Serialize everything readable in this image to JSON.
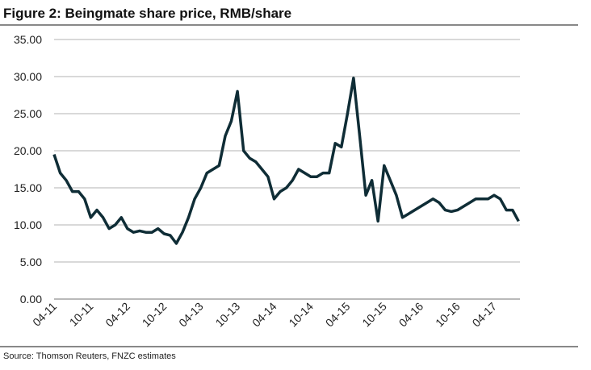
{
  "chart_data": {
    "type": "line",
    "title": "Figure 2: Beingmate share price, RMB/share",
    "source": "Source: Thomson Reuters, FNZC estimates",
    "categories": [
      "04-11",
      null,
      null,
      null,
      null,
      null,
      "10-11",
      null,
      null,
      null,
      null,
      null,
      "04-12",
      null,
      null,
      null,
      null,
      null,
      "10-12",
      null,
      null,
      null,
      null,
      null,
      "04-13",
      null,
      null,
      null,
      null,
      null,
      "10-13",
      null,
      null,
      null,
      null,
      null,
      "04-14",
      null,
      null,
      null,
      null,
      null,
      "10-14",
      null,
      null,
      null,
      null,
      null,
      "04-15",
      null,
      null,
      null,
      null,
      null,
      "10-15",
      null,
      null,
      null,
      null,
      null,
      "04-16",
      null,
      null,
      null,
      null,
      null,
      "10-16",
      null,
      null,
      null,
      null,
      null,
      "04-17",
      null,
      null,
      null,
      null
    ],
    "series": [
      {
        "name": "Beingmate",
        "color": "#0f2d36",
        "values": [
          19.5,
          17,
          16,
          14.5,
          14.5,
          13.5,
          11,
          12,
          11,
          9.5,
          10,
          11,
          9.5,
          9,
          9.2,
          9,
          9,
          9.5,
          8.8,
          8.6,
          7.5,
          9,
          11,
          13.5,
          15,
          17,
          17.5,
          18,
          22,
          24,
          28,
          20,
          19,
          18.5,
          17.5,
          16.5,
          13.5,
          14.5,
          15,
          16,
          17.5,
          17,
          16.5,
          16.5,
          17,
          17,
          21,
          20.5,
          25,
          29.8,
          22,
          14,
          16,
          10.5,
          18,
          16,
          14,
          11,
          11.5,
          12,
          12.5,
          13,
          13.5,
          13,
          12,
          11.8,
          12,
          12.5,
          13,
          13.5,
          13.5,
          13.5,
          14,
          13.5,
          12,
          12,
          10.5
        ]
      }
    ],
    "ylim": [
      0,
      35
    ],
    "yticks": [
      {
        "value": 0,
        "label": "0.00"
      },
      {
        "value": 5,
        "label": "5.00"
      },
      {
        "value": 10,
        "label": "10.00"
      },
      {
        "value": 15,
        "label": "15.00"
      },
      {
        "value": 20,
        "label": "20.00"
      },
      {
        "value": 25,
        "label": "25.00"
      },
      {
        "value": 30,
        "label": "30.00"
      },
      {
        "value": 35,
        "label": "35.00"
      }
    ],
    "grid": true
  }
}
